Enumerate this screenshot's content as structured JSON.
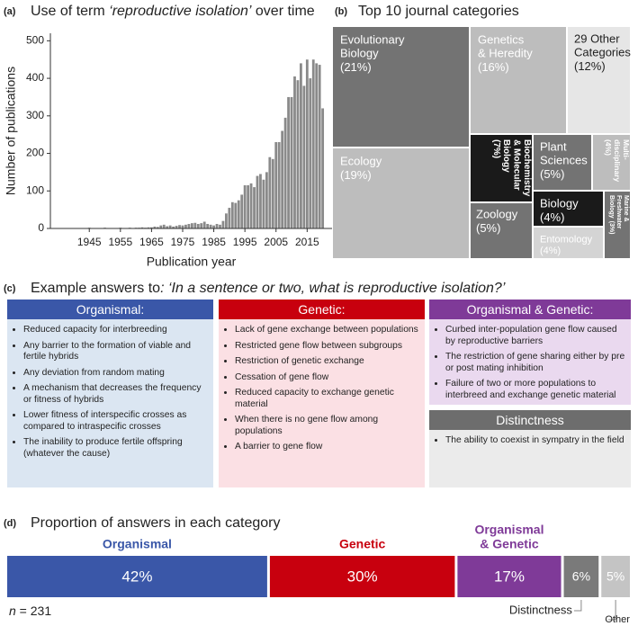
{
  "chart_data": [
    {
      "type": "bar",
      "panel": "(a)",
      "title": [
        "Use of term ",
        "‘reproductive isolation’",
        " over time"
      ],
      "xlabel": "Publication year",
      "ylabel": "Number of publications",
      "x": [
        1945,
        1946,
        1947,
        1948,
        1949,
        1950,
        1951,
        1952,
        1953,
        1954,
        1955,
        1956,
        1957,
        1958,
        1959,
        1960,
        1961,
        1962,
        1963,
        1964,
        1965,
        1966,
        1967,
        1968,
        1969,
        1970,
        1971,
        1972,
        1973,
        1974,
        1975,
        1976,
        1977,
        1978,
        1979,
        1980,
        1981,
        1982,
        1983,
        1984,
        1985,
        1986,
        1987,
        1988,
        1989,
        1990,
        1991,
        1992,
        1993,
        1994,
        1995,
        1996,
        1997,
        1998,
        1999,
        2000,
        2001,
        2002,
        2003,
        2004,
        2005,
        2006,
        2007,
        2008,
        2009,
        2010,
        2011,
        2012,
        2013,
        2014,
        2015,
        2016,
        2017,
        2018,
        2019,
        2020
      ],
      "values": [
        2,
        1,
        1,
        1,
        1,
        2,
        1,
        1,
        1,
        1,
        2,
        1,
        1,
        2,
        1,
        2,
        2,
        3,
        2,
        3,
        3,
        5,
        4,
        8,
        10,
        6,
        8,
        5,
        7,
        9,
        8,
        10,
        12,
        14,
        15,
        12,
        14,
        18,
        12,
        10,
        8,
        12,
        10,
        20,
        40,
        55,
        70,
        68,
        75,
        90,
        115,
        115,
        120,
        110,
        140,
        145,
        130,
        150,
        190,
        185,
        230,
        230,
        260,
        295,
        350,
        350,
        405,
        395,
        440,
        380,
        450,
        400,
        450,
        440,
        436,
        320
      ],
      "color": "#8a8a8a",
      "xlim": [
        1932.5,
        2023
      ],
      "ylim": [
        0,
        520
      ],
      "xticks": [
        1945,
        1955,
        1965,
        1975,
        1985,
        1995,
        2005,
        2015
      ],
      "yticks": [
        0,
        100,
        200,
        300,
        400,
        500
      ]
    },
    {
      "type": "treemap",
      "panel": "(b)",
      "title": "Top 10 journal categories",
      "categories": [
        [
          "Evolutionary",
          "Biology"
        ],
        [
          "Genetics",
          "& Heredity"
        ],
        [
          "29 Other",
          "Categories"
        ],
        [
          "Ecology"
        ],
        [
          "Biochemistry",
          "& Molecular",
          "Biology"
        ],
        [
          "Plant",
          "Sciences"
        ],
        [
          "Multi-",
          "disciplinary"
        ],
        [
          "Biology"
        ],
        [
          "Zoology"
        ],
        [
          "Entomology"
        ],
        [
          "Marine &",
          "Freshwater",
          "Biology"
        ]
      ],
      "values": [
        21,
        16,
        12,
        19,
        7,
        5,
        4,
        4,
        5,
        4,
        3
      ],
      "value_labels": [
        "(21%)",
        "(16%)",
        "(12%)",
        "(19%)",
        "(7%)",
        "(5%)",
        "(4%)",
        "(4%)",
        "(5%)",
        "(4%)",
        "(3%)"
      ],
      "colors": [
        "#737373",
        "#bdbdbd",
        "#e6e6e6",
        "#bdbdbd",
        "#1a1a1a",
        "#737373",
        "#bdbdbd",
        "#1a1a1a",
        "#737373",
        "#d4d4d4",
        "#737373"
      ]
    },
    {
      "type": "stacked_bar",
      "panel": "(d)",
      "title": "Proportion of answers in each category",
      "categories": [
        [
          "Organismal"
        ],
        [
          "Genetic"
        ],
        [
          "Organismal",
          "& Genetic"
        ],
        [
          "Distinctness"
        ],
        [
          "Other"
        ]
      ],
      "values": [
        42,
        30,
        17,
        6,
        5
      ],
      "value_labels": [
        "42%",
        "30%",
        "17%",
        "6%",
        "5%"
      ],
      "colors": [
        "#3a57a8",
        "#c8000e",
        "#7f3a98",
        "#7a7a7a",
        "#c4c4c4"
      ],
      "note": [
        "n",
        " = 231"
      ]
    }
  ],
  "answers": {
    "panel": "(c)",
    "title": [
      "Example answers to",
      ": ‘In a sentence or two, what is reproductive isolation?’"
    ],
    "groups": [
      {
        "heading": "Organismal:",
        "items": [
          "Reduced capacity for interbreeding",
          "Any barrier to the formation of viable and fertile hybrids",
          "Any deviation from random mating",
          "A mechanism that decreases the frequency or fitness of hybrids",
          "Lower fitness of interspecific crosses as compared to intraspecific crosses",
          "The inability to produce fertile offspring (whatever the cause)"
        ]
      },
      {
        "heading": "Genetic:",
        "items": [
          "Lack of gene exchange between populations",
          "Restricted gene flow between subgroups",
          "Restriction of genetic exchange",
          "Cessation of gene flow",
          "Reduced capacity to exchange genetic material",
          "When there is no gene flow among populations",
          "A barrier to gene flow"
        ]
      },
      {
        "heading": "Organismal & Genetic:",
        "items": [
          "Curbed inter-population gene flow caused by reproductive barriers",
          "The restriction of gene sharing either by pre or post mating inhibition",
          "Failure of two or more populations to interbreed and exchange genetic material"
        ]
      },
      {
        "heading": "Distinctness",
        "items": [
          "The ability to coexist in sympatry in the field"
        ]
      }
    ]
  }
}
